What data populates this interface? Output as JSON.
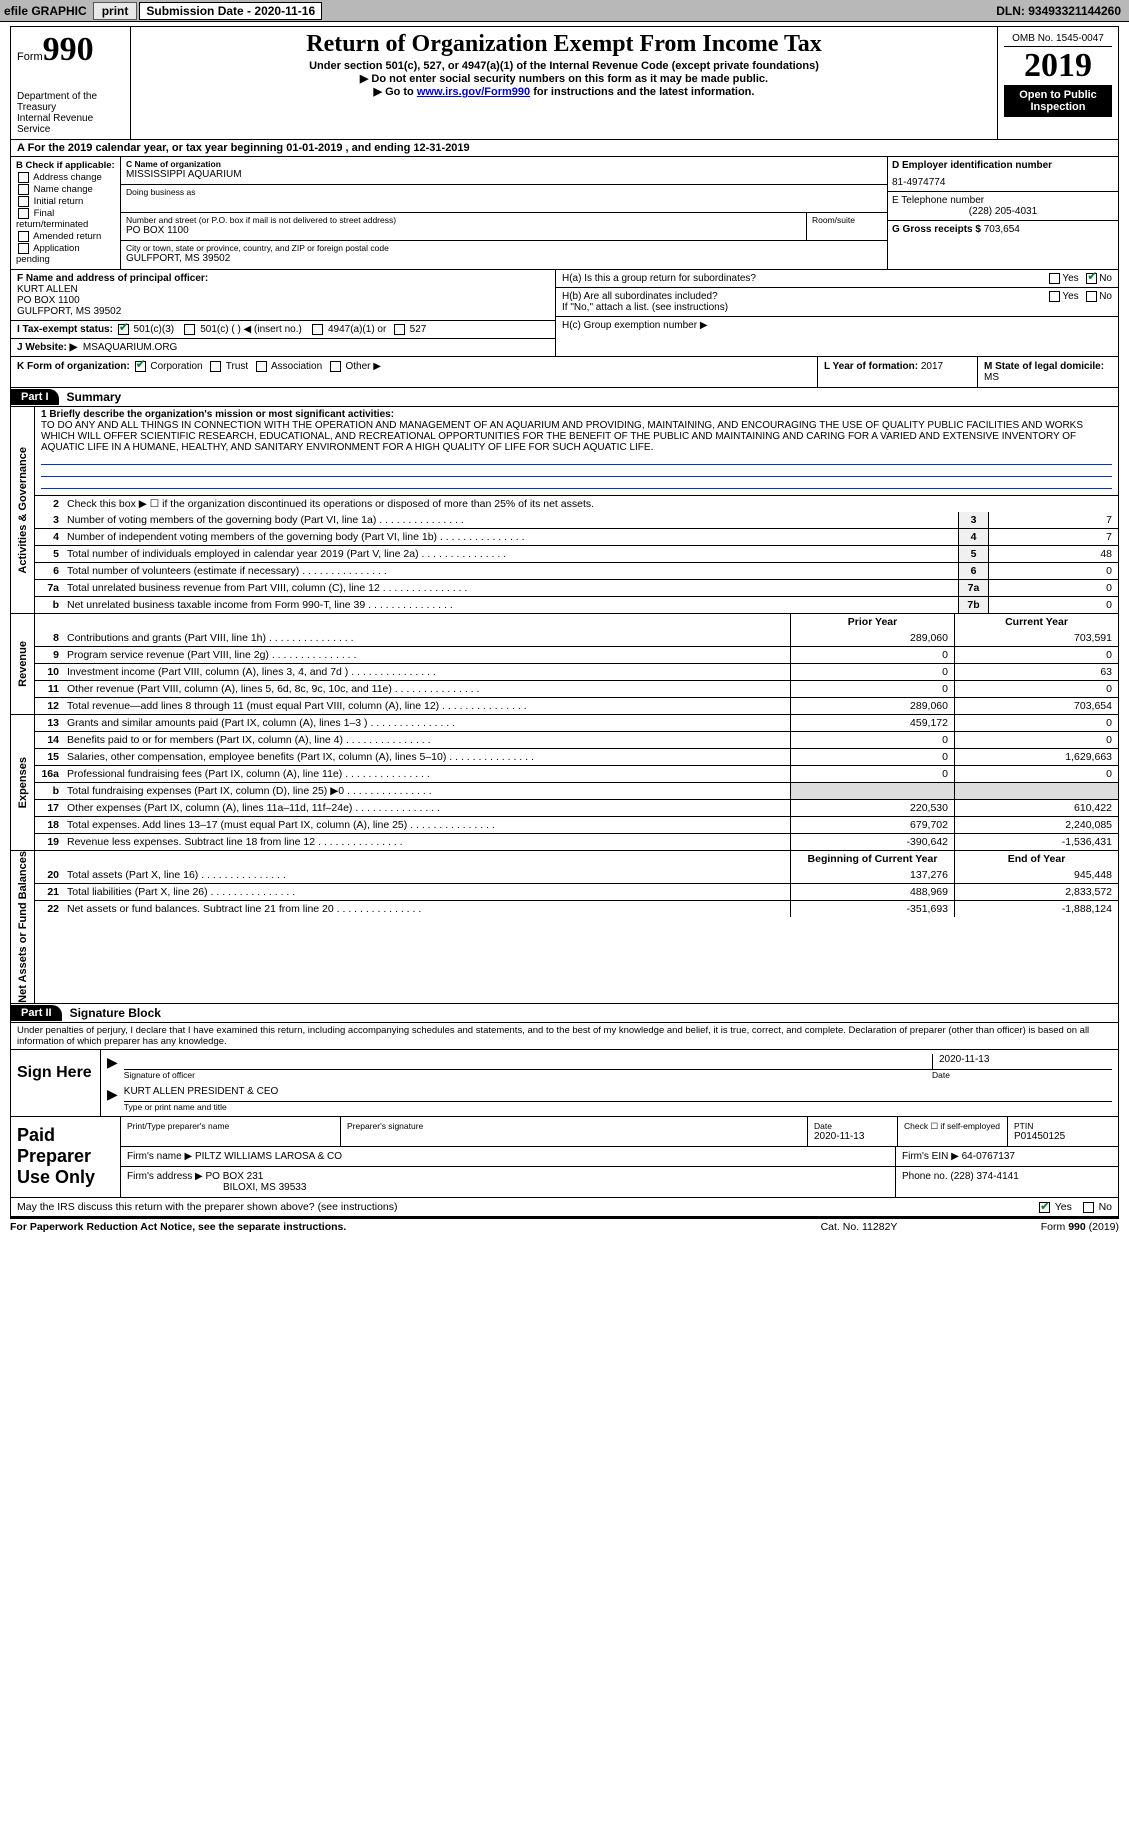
{
  "topbar": {
    "efile": "efile GRAPHIC",
    "print": "print",
    "subdate_label": "Submission Date - ",
    "subdate": "2020-11-16",
    "dln_label": "DLN: ",
    "dln": "93493321144260"
  },
  "header": {
    "form_prefix": "Form",
    "form_no": "990",
    "dept1": "Department of the Treasury",
    "dept2": "Internal Revenue Service",
    "title": "Return of Organization Exempt From Income Tax",
    "sub1": "Under section 501(c), 527, or 4947(a)(1) of the Internal Revenue Code (except private foundations)",
    "sub2a": "▶ Do not enter social security numbers on this form as it may be made public.",
    "sub2b_pre": "▶ Go to ",
    "sub2b_link": "www.irs.gov/Form990",
    "sub2b_post": " for instructions and the latest information.",
    "omb": "OMB No. 1545-0047",
    "year": "2019",
    "open": "Open to Public Inspection"
  },
  "period": {
    "text_a": "A For the 2019 calendar year, or tax year beginning ",
    "begin": "01-01-2019",
    "text_b": " , and ending ",
    "end": "12-31-2019"
  },
  "boxB": {
    "title": "B Check if applicable:",
    "opts": [
      "Address change",
      "Name change",
      "Initial return",
      "Final return/terminated",
      "Amended return",
      "Application pending"
    ]
  },
  "boxC": {
    "name_label": "C Name of organization",
    "name": "MISSISSIPPI AQUARIUM",
    "dba_label": "Doing business as",
    "dba": "",
    "street_label": "Number and street (or P.O. box if mail is not delivered to street address)",
    "room_label": "Room/suite",
    "street": "PO BOX 1100",
    "city_label": "City or town, state or province, country, and ZIP or foreign postal code",
    "city": "GULFPORT, MS  39502"
  },
  "boxD": {
    "label": "D Employer identification number",
    "val": "81-4974774"
  },
  "boxE": {
    "label": "E Telephone number",
    "val": "(228) 205-4031"
  },
  "boxG": {
    "label": "G Gross receipts $ ",
    "val": "703,654"
  },
  "boxF": {
    "label": "F Name and address of principal officer:",
    "name": "KURT ALLEN",
    "street": "PO BOX 1100",
    "city": "GULFPORT, MS  39502"
  },
  "boxH": {
    "a_label": "H(a)  Is this a group return for subordinates?",
    "b_label": "H(b)  Are all subordinates included?",
    "b_note": "If \"No,\" attach a list. (see instructions)",
    "c_label": "H(c)  Group exemption number ▶",
    "yes": "Yes",
    "no": "No"
  },
  "boxI": {
    "label": "I   Tax-exempt status:",
    "opt1": "501(c)(3)",
    "opt2": "501(c) (   ) ◀ (insert no.)",
    "opt3": "4947(a)(1) or",
    "opt4": "527"
  },
  "boxJ": {
    "label": "J   Website: ▶",
    "val": "MSAQUARIUM.ORG"
  },
  "boxK": {
    "label": "K Form of organization:",
    "opts": [
      "Corporation",
      "Trust",
      "Association",
      "Other ▶"
    ]
  },
  "boxL": {
    "label": "L Year of formation: ",
    "val": "2017"
  },
  "boxM": {
    "label": "M State of legal domicile: ",
    "val": "MS"
  },
  "part1": {
    "hdr": "Part I",
    "title": "Summary",
    "vlabels": [
      "Activities & Governance",
      "Revenue",
      "Expenses",
      "Net Assets or Fund Balances"
    ],
    "l1_label": "1  Briefly describe the organization's mission or most significant activities:",
    "l1_text": "TO DO ANY AND ALL THINGS IN CONNECTION WITH THE OPERATION AND MANAGEMENT OF AN AQUARIUM AND PROVIDING, MAINTAINING, AND ENCOURAGING THE USE OF QUALITY PUBLIC FACILITIES AND WORKS WHICH WILL OFFER SCIENTIFIC RESEARCH, EDUCATIONAL, AND RECREATIONAL OPPORTUNITIES FOR THE BENEFIT OF THE PUBLIC AND MAINTAINING AND CARING FOR A VARIED AND EXTENSIVE INVENTORY OF AQUATIC LIFE IN A HUMANE, HEALTHY, AND SANITARY ENVIRONMENT FOR A HIGH QUALITY OF LIFE FOR SUCH AQUATIC LIFE.",
    "l2": "Check this box ▶ ☐ if the organization discontinued its operations or disposed of more than 25% of its net assets.",
    "lines_ag": [
      {
        "no": "3",
        "desc": "Number of voting members of the governing body (Part VI, line 1a)",
        "ref": "3",
        "val": "7"
      },
      {
        "no": "4",
        "desc": "Number of independent voting members of the governing body (Part VI, line 1b)",
        "ref": "4",
        "val": "7"
      },
      {
        "no": "5",
        "desc": "Total number of individuals employed in calendar year 2019 (Part V, line 2a)",
        "ref": "5",
        "val": "48"
      },
      {
        "no": "6",
        "desc": "Total number of volunteers (estimate if necessary)",
        "ref": "6",
        "val": "0"
      },
      {
        "no": "7a",
        "desc": "Total unrelated business revenue from Part VIII, column (C), line 12",
        "ref": "7a",
        "val": "0"
      },
      {
        "no": "b",
        "desc": "Net unrelated business taxable income from Form 990-T, line 39",
        "ref": "7b",
        "val": "0"
      }
    ],
    "colhdr_py": "Prior Year",
    "colhdr_cy": "Current Year",
    "lines_rev": [
      {
        "no": "8",
        "desc": "Contributions and grants (Part VIII, line 1h)",
        "py": "289,060",
        "cy": "703,591"
      },
      {
        "no": "9",
        "desc": "Program service revenue (Part VIII, line 2g)",
        "py": "0",
        "cy": "0"
      },
      {
        "no": "10",
        "desc": "Investment income (Part VIII, column (A), lines 3, 4, and 7d )",
        "py": "0",
        "cy": "63"
      },
      {
        "no": "11",
        "desc": "Other revenue (Part VIII, column (A), lines 5, 6d, 8c, 9c, 10c, and 11e)",
        "py": "0",
        "cy": "0"
      },
      {
        "no": "12",
        "desc": "Total revenue—add lines 8 through 11 (must equal Part VIII, column (A), line 12)",
        "py": "289,060",
        "cy": "703,654"
      }
    ],
    "lines_exp": [
      {
        "no": "13",
        "desc": "Grants and similar amounts paid (Part IX, column (A), lines 1–3 )",
        "py": "459,172",
        "cy": "0"
      },
      {
        "no": "14",
        "desc": "Benefits paid to or for members (Part IX, column (A), line 4)",
        "py": "0",
        "cy": "0"
      },
      {
        "no": "15",
        "desc": "Salaries, other compensation, employee benefits (Part IX, column (A), lines 5–10)",
        "py": "0",
        "cy": "1,629,663"
      },
      {
        "no": "16a",
        "desc": "Professional fundraising fees (Part IX, column (A), line 11e)",
        "py": "0",
        "cy": "0"
      },
      {
        "no": "b",
        "desc": "Total fundraising expenses (Part IX, column (D), line 25) ▶0",
        "py": "",
        "cy": "",
        "gray": true
      },
      {
        "no": "17",
        "desc": "Other expenses (Part IX, column (A), lines 11a–11d, 11f–24e)",
        "py": "220,530",
        "cy": "610,422"
      },
      {
        "no": "18",
        "desc": "Total expenses. Add lines 13–17 (must equal Part IX, column (A), line 25)",
        "py": "679,702",
        "cy": "2,240,085"
      },
      {
        "no": "19",
        "desc": "Revenue less expenses. Subtract line 18 from line 12",
        "py": "-390,642",
        "cy": "-1,536,431"
      }
    ],
    "colhdr_by": "Beginning of Current Year",
    "colhdr_ey": "End of Year",
    "lines_net": [
      {
        "no": "20",
        "desc": "Total assets (Part X, line 16)",
        "py": "137,276",
        "cy": "945,448"
      },
      {
        "no": "21",
        "desc": "Total liabilities (Part X, line 26)",
        "py": "488,969",
        "cy": "2,833,572"
      },
      {
        "no": "22",
        "desc": "Net assets or fund balances. Subtract line 21 from line 20",
        "py": "-351,693",
        "cy": "-1,888,124"
      }
    ]
  },
  "part2": {
    "hdr": "Part II",
    "title": "Signature Block",
    "decl": "Under penalties of perjury, I declare that I have examined this return, including accompanying schedules and statements, and to the best of my knowledge and belief, it is true, correct, and complete. Declaration of preparer (other than officer) is based on all information of which preparer has any knowledge."
  },
  "sign": {
    "here": "Sign Here",
    "sig_officer": "Signature of officer",
    "date": "Date",
    "date_val": "2020-11-13",
    "name": "KURT ALLEN  PRESIDENT & CEO",
    "name_label": "Type or print name and title"
  },
  "prep": {
    "label": "Paid Preparer Use Only",
    "c1": "Print/Type preparer's name",
    "c2": "Preparer's signature",
    "c3_label": "Date",
    "c3": "2020-11-13",
    "c4_label": "Check ☐ if self-employed",
    "c5_label": "PTIN",
    "c5": "P01450125",
    "firm_label": "Firm's name    ▶",
    "firm": "PILTZ WILLIAMS LAROSA & CO",
    "ein_label": "Firm's EIN ▶",
    "ein": "64-0767137",
    "addr_label": "Firm's address ▶",
    "addr1": "PO BOX 231",
    "addr2": "BILOXI, MS  39533",
    "phone_label": "Phone no. ",
    "phone": "(228) 374-4141"
  },
  "discuss": {
    "text": "May the IRS discuss this return with the preparer shown above? (see instructions)",
    "yes": "Yes",
    "no": "No"
  },
  "footer": {
    "left": "For Paperwork Reduction Act Notice, see the separate instructions.",
    "mid": "Cat. No. 11282Y",
    "right": "Form 990 (2019)"
  }
}
